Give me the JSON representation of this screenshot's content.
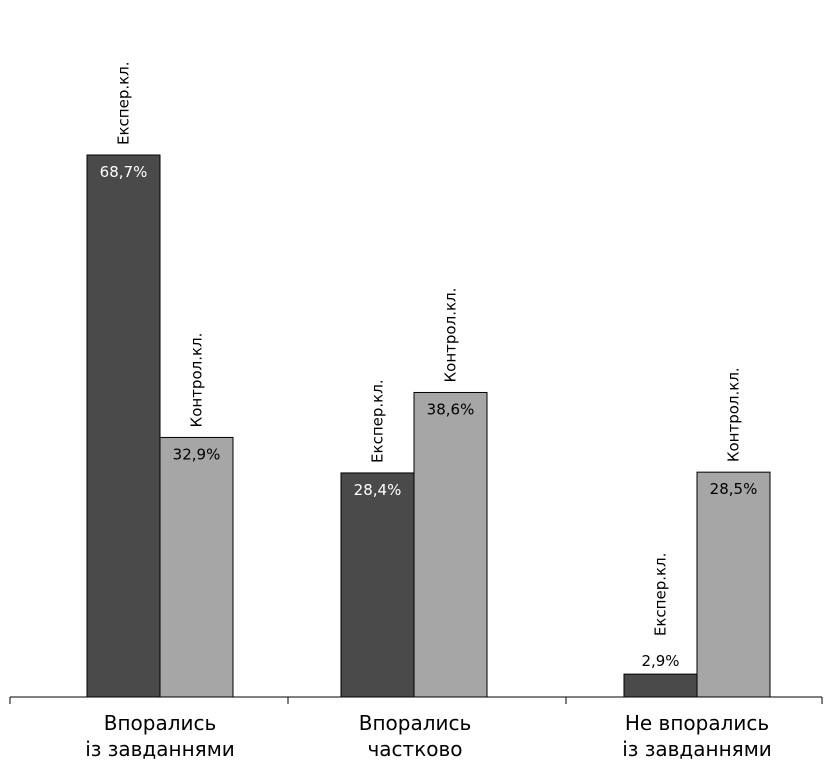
{
  "chart_data": {
    "type": "bar",
    "categories": [
      [
        "Впорались",
        "із завданнями"
      ],
      [
        "Впорались",
        "частково"
      ],
      [
        "Не впорались",
        "із завданнями"
      ]
    ],
    "series": [
      {
        "name": "Експер.кл.",
        "values": [
          68.7,
          28.4,
          2.9
        ],
        "value_labels": [
          "68,7%",
          "28,4%",
          "2,9%"
        ],
        "color": "#4a4a4a",
        "label_color": "#ffffff"
      },
      {
        "name": "Контрол.кл.",
        "values": [
          32.9,
          38.6,
          28.5
        ],
        "value_labels": [
          "32,9%",
          "38,6%",
          "28,5%"
        ],
        "color": "#a6a6a6",
        "label_color": "#000000"
      }
    ],
    "ylim": [
      0,
      68.7
    ],
    "grid": false,
    "legend": "none"
  }
}
